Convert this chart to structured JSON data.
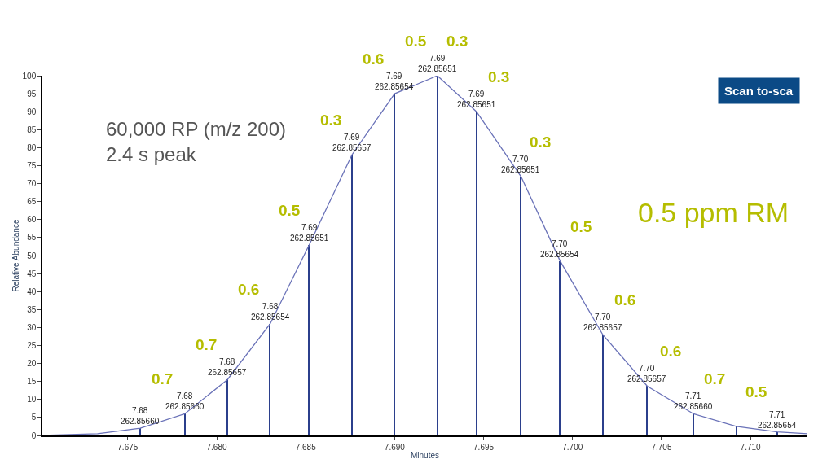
{
  "chart_data": {
    "type": "bar",
    "xlabel": "Minutes",
    "ylabel": "Relative Abundance",
    "xlim": [
      7.6702,
      7.7132
    ],
    "ylim": [
      0,
      100
    ],
    "xticks": [
      7.675,
      {
        "value": 7.68,
        "label": "7.680"
      },
      7.685,
      {
        "value": 7.69,
        "label": "7.690"
      },
      7.695,
      {
        "value": 7.7,
        "label": "7.700"
      },
      7.705,
      {
        "value": 7.71,
        "label": "7.710"
      }
    ],
    "yticks": [
      0,
      5,
      10,
      15,
      20,
      25,
      30,
      35,
      40,
      45,
      50,
      55,
      60,
      65,
      70,
      75,
      80,
      85,
      90,
      95,
      100
    ],
    "marker": "none",
    "line_style": "solid",
    "series": [
      {
        "color": "#2b3f8c",
        "x": [
          7.6757,
          7.6782,
          7.6806,
          7.683,
          7.6852,
          7.6876,
          7.69,
          7.6924,
          7.6946,
          7.6971,
          7.6993,
          7.7017,
          7.7042,
          7.7068,
          7.7092,
          7.7115
        ],
        "values": [
          2,
          6,
          15.5,
          31,
          53,
          78,
          95,
          100,
          90,
          72,
          48.5,
          28,
          13.7,
          6,
          2.5,
          1
        ]
      },
      {
        "type": "line",
        "color": "#6a72b8",
        "x": [
          7.6702,
          7.6733,
          7.6757,
          7.6782,
          7.6806,
          7.683,
          7.6852,
          7.6876,
          7.69,
          7.6924,
          7.6946,
          7.6971,
          7.6993,
          7.7017,
          7.7042,
          7.7068,
          7.7092,
          7.7115,
          7.7132
        ],
        "values": [
          0,
          0.5,
          2,
          6,
          15.5,
          31,
          53,
          78,
          95,
          100,
          90,
          72,
          48.5,
          28,
          13.7,
          6,
          2.5,
          1,
          0.5
        ]
      }
    ],
    "annotations": [
      "60,000 RP (m/z 200)\n2.4 s peak",
      "0.5 ppm RM",
      "Scan to-sca",
      {
        "text": "7.68\n262.85660",
        "x": 7.6757,
        "y": 2
      },
      {
        "text": "7.68\n262.85660",
        "x": 7.6782,
        "y": 6
      },
      {
        "text": "7.68\n262.85657",
        "x": 7.6806,
        "y": 15.5
      },
      {
        "text": "7.68\n262.85654",
        "x": 7.683,
        "y": 31
      },
      {
        "text": "7.69\n262.85651",
        "x": 7.6852,
        "y": 53
      },
      {
        "text": "7.69\n262.85657",
        "x": 7.6876,
        "y": 78
      },
      {
        "text": "7.69\n262.85654",
        "x": 7.69,
        "y": 95
      },
      {
        "text": "7.69\n262.85651",
        "x": 7.6924,
        "y": 100
      },
      {
        "text": "7.69\n262.85651",
        "x": 7.6946,
        "y": 90
      },
      {
        "text": "7.70\n262.85651",
        "x": 7.6971,
        "y": 72
      },
      {
        "text": "7.70\n262.85654",
        "x": 7.6993,
        "y": 48.5
      },
      {
        "text": "7.70\n262.85657",
        "x": 7.7017,
        "y": 28
      },
      {
        "text": "7.70\n262.85657",
        "x": 7.7042,
        "y": 13.7
      },
      {
        "text": "7.71\n262.85660",
        "x": 7.7068,
        "y": 6
      },
      {
        "text": "7.71\n262.85654",
        "x": 7.7115,
        "y": 1
      },
      "0.7",
      "0.7",
      "0.6",
      "0.5",
      "0.3",
      "0.6",
      "0.5",
      "0.3",
      "0.3",
      "0.3",
      "0.5",
      "0.6",
      "0.6",
      "0.7",
      "0.5"
    ]
  }
}
